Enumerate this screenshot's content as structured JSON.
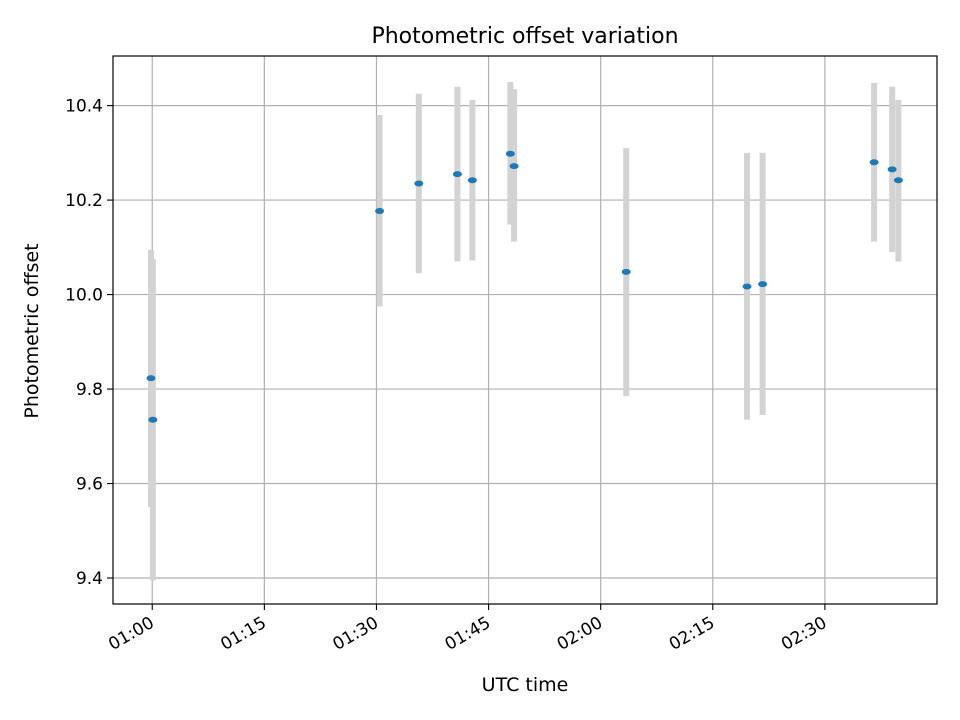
{
  "chart_data": {
    "type": "scatter",
    "title": "Photometric offset variation",
    "xlabel": "UTC time",
    "ylabel": "Photometric offset",
    "x_ticks": [
      "01:00",
      "01:15",
      "01:30",
      "01:45",
      "02:00",
      "02:15",
      "02:30"
    ],
    "y_ticks": [
      "9.4",
      "9.6",
      "9.8",
      "10.0",
      "10.2",
      "10.4"
    ],
    "xlim": [
      "00:54:45",
      "02:45:00"
    ],
    "ylim": [
      9.345,
      10.505
    ],
    "grid": true,
    "colors": {
      "points": "#1f77b4",
      "error_bars": "#d3d3d3",
      "grid": "#b0b0b0"
    },
    "series": [
      {
        "error_bars": "y",
        "points": [
          {
            "x": "00:59:50",
            "y": 9.823,
            "y_err_low": 9.55,
            "y_err_high": 10.095
          },
          {
            "x": "01:00:05",
            "y": 9.735,
            "y_err_low": 9.395,
            "y_err_high": 10.075
          },
          {
            "x": "01:30:25",
            "y": 10.177,
            "y_err_low": 9.975,
            "y_err_high": 10.38
          },
          {
            "x": "01:35:40",
            "y": 10.235,
            "y_err_low": 10.045,
            "y_err_high": 10.425
          },
          {
            "x": "01:40:50",
            "y": 10.255,
            "y_err_low": 10.07,
            "y_err_high": 10.44
          },
          {
            "x": "01:42:50",
            "y": 10.242,
            "y_err_low": 10.072,
            "y_err_high": 10.412
          },
          {
            "x": "01:47:55",
            "y": 10.298,
            "y_err_low": 10.148,
            "y_err_high": 10.45
          },
          {
            "x": "01:48:25",
            "y": 10.272,
            "y_err_low": 10.112,
            "y_err_high": 10.435
          },
          {
            "x": "02:03:25",
            "y": 10.048,
            "y_err_low": 9.785,
            "y_err_high": 10.31
          },
          {
            "x": "02:19:35",
            "y": 10.017,
            "y_err_low": 9.735,
            "y_err_high": 10.3
          },
          {
            "x": "02:21:40",
            "y": 10.022,
            "y_err_low": 9.745,
            "y_err_high": 10.3
          },
          {
            "x": "02:36:35",
            "y": 10.28,
            "y_err_low": 10.112,
            "y_err_high": 10.448
          },
          {
            "x": "02:39:00",
            "y": 10.265,
            "y_err_low": 10.09,
            "y_err_high": 10.44
          },
          {
            "x": "02:39:50",
            "y": 10.242,
            "y_err_low": 10.07,
            "y_err_high": 10.412
          }
        ]
      }
    ]
  }
}
